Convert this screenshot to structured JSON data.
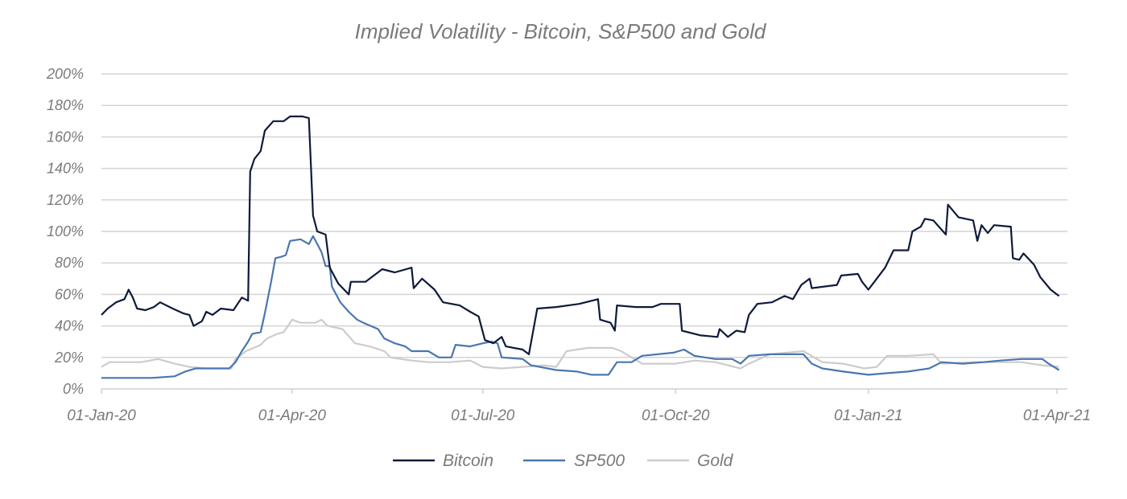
{
  "chart_data": {
    "type": "line",
    "title": "Implied Volatility - Bitcoin, S&P500 and Gold",
    "xlabel": "",
    "ylabel": "",
    "ylim": [
      0,
      200
    ],
    "xlim": [
      "2020-01-01",
      "2021-04-02"
    ],
    "grid": true,
    "legend_placement": "bottom",
    "y_ticks": [
      "0%",
      "20%",
      "40%",
      "60%",
      "80%",
      "100%",
      "120%",
      "140%",
      "160%",
      "180%",
      "200%"
    ],
    "x_ticks": [
      {
        "date": "2020-01-01",
        "label": "01-Jan-20"
      },
      {
        "date": "2020-04-01",
        "label": "01-Apr-20"
      },
      {
        "date": "2020-07-01",
        "label": "01-Jul-20"
      },
      {
        "date": "2020-10-01",
        "label": "01-Oct-20"
      },
      {
        "date": "2021-01-01",
        "label": "01-Jan-21"
      },
      {
        "date": "2021-04-01",
        "label": "01-Apr-21"
      }
    ],
    "series": [
      {
        "name": "Bitcoin",
        "color": "#0e1a3b",
        "points": [
          [
            "2020-01-01",
            47
          ],
          [
            "2020-01-04",
            51
          ],
          [
            "2020-01-08",
            55
          ],
          [
            "2020-01-12",
            57
          ],
          [
            "2020-01-14",
            63
          ],
          [
            "2020-01-16",
            58
          ],
          [
            "2020-01-18",
            51
          ],
          [
            "2020-01-22",
            50
          ],
          [
            "2020-01-26",
            52
          ],
          [
            "2020-01-29",
            55
          ],
          [
            "2020-02-04",
            51
          ],
          [
            "2020-02-09",
            48
          ],
          [
            "2020-02-12",
            47
          ],
          [
            "2020-02-14",
            40
          ],
          [
            "2020-02-18",
            43
          ],
          [
            "2020-02-20",
            49
          ],
          [
            "2020-02-23",
            47
          ],
          [
            "2020-02-27",
            51
          ],
          [
            "2020-03-04",
            50
          ],
          [
            "2020-03-08",
            58
          ],
          [
            "2020-03-11",
            56
          ],
          [
            "2020-03-12",
            138
          ],
          [
            "2020-03-14",
            146
          ],
          [
            "2020-03-17",
            151
          ],
          [
            "2020-03-19",
            164
          ],
          [
            "2020-03-23",
            170
          ],
          [
            "2020-03-28",
            170
          ],
          [
            "2020-03-31",
            173
          ],
          [
            "2020-04-06",
            173
          ],
          [
            "2020-04-09",
            172
          ],
          [
            "2020-04-11",
            110
          ],
          [
            "2020-04-13",
            100
          ],
          [
            "2020-04-17",
            98
          ],
          [
            "2020-04-19",
            77
          ],
          [
            "2020-04-23",
            67
          ],
          [
            "2020-04-28",
            60
          ],
          [
            "2020-04-29",
            68
          ],
          [
            "2020-05-06",
            68
          ],
          [
            "2020-05-14",
            76
          ],
          [
            "2020-05-20",
            74
          ],
          [
            "2020-05-28",
            77
          ],
          [
            "2020-05-29",
            64
          ],
          [
            "2020-06-02",
            70
          ],
          [
            "2020-06-08",
            63
          ],
          [
            "2020-06-12",
            55
          ],
          [
            "2020-06-20",
            53
          ],
          [
            "2020-06-25",
            49
          ],
          [
            "2020-06-29",
            46
          ],
          [
            "2020-07-02",
            31
          ],
          [
            "2020-07-06",
            29
          ],
          [
            "2020-07-10",
            33
          ],
          [
            "2020-07-12",
            27
          ],
          [
            "2020-07-20",
            25
          ],
          [
            "2020-07-23",
            22
          ],
          [
            "2020-07-27",
            51
          ],
          [
            "2020-08-05",
            52
          ],
          [
            "2020-08-16",
            54
          ],
          [
            "2020-08-25",
            57
          ],
          [
            "2020-08-26",
            44
          ],
          [
            "2020-08-31",
            42
          ],
          [
            "2020-09-02",
            37
          ],
          [
            "2020-09-03",
            53
          ],
          [
            "2020-09-12",
            52
          ],
          [
            "2020-09-20",
            52
          ],
          [
            "2020-09-24",
            54
          ],
          [
            "2020-10-03",
            54
          ],
          [
            "2020-10-04",
            37
          ],
          [
            "2020-10-13",
            34
          ],
          [
            "2020-10-21",
            33
          ],
          [
            "2020-10-22",
            38
          ],
          [
            "2020-10-26",
            33
          ],
          [
            "2020-10-30",
            37
          ],
          [
            "2020-11-03",
            36
          ],
          [
            "2020-11-05",
            47
          ],
          [
            "2020-11-09",
            54
          ],
          [
            "2020-11-16",
            55
          ],
          [
            "2020-11-22",
            59
          ],
          [
            "2020-11-26",
            57
          ],
          [
            "2020-11-30",
            66
          ],
          [
            "2020-12-04",
            70
          ],
          [
            "2020-12-05",
            64
          ],
          [
            "2020-12-17",
            66
          ],
          [
            "2020-12-19",
            72
          ],
          [
            "2020-12-27",
            73
          ],
          [
            "2020-12-29",
            68
          ],
          [
            "2021-01-01",
            63
          ],
          [
            "2021-01-05",
            70
          ],
          [
            "2021-01-09",
            77
          ],
          [
            "2021-01-13",
            88
          ],
          [
            "2021-01-20",
            88
          ],
          [
            "2021-01-22",
            100
          ],
          [
            "2021-01-26",
            103
          ],
          [
            "2021-01-28",
            108
          ],
          [
            "2021-02-01",
            107
          ],
          [
            "2021-02-07",
            98
          ],
          [
            "2021-02-08",
            117
          ],
          [
            "2021-02-13",
            109
          ],
          [
            "2021-02-20",
            107
          ],
          [
            "2021-02-22",
            94
          ],
          [
            "2021-02-24",
            104
          ],
          [
            "2021-02-27",
            99
          ],
          [
            "2021-03-02",
            104
          ],
          [
            "2021-03-10",
            103
          ],
          [
            "2021-03-11",
            83
          ],
          [
            "2021-03-14",
            82
          ],
          [
            "2021-03-16",
            86
          ],
          [
            "2021-03-21",
            79
          ],
          [
            "2021-03-24",
            71
          ],
          [
            "2021-03-29",
            63
          ],
          [
            "2021-04-02",
            59
          ]
        ]
      },
      {
        "name": "SP500",
        "color": "#4a76b0",
        "points": [
          [
            "2020-01-01",
            7
          ],
          [
            "2020-01-15",
            7
          ],
          [
            "2020-01-25",
            7
          ],
          [
            "2020-02-05",
            8
          ],
          [
            "2020-02-10",
            11
          ],
          [
            "2020-02-15",
            13
          ],
          [
            "2020-02-25",
            13
          ],
          [
            "2020-03-02",
            13
          ],
          [
            "2020-03-05",
            17
          ],
          [
            "2020-03-08",
            24
          ],
          [
            "2020-03-11",
            30
          ],
          [
            "2020-03-13",
            35
          ],
          [
            "2020-03-17",
            36
          ],
          [
            "2020-03-19",
            48
          ],
          [
            "2020-03-22",
            68
          ],
          [
            "2020-03-24",
            83
          ],
          [
            "2020-03-27",
            84
          ],
          [
            "2020-03-29",
            85
          ],
          [
            "2020-03-31",
            94
          ],
          [
            "2020-04-05",
            95
          ],
          [
            "2020-04-09",
            92
          ],
          [
            "2020-04-11",
            97
          ],
          [
            "2020-04-15",
            87
          ],
          [
            "2020-04-17",
            78
          ],
          [
            "2020-04-19",
            78
          ],
          [
            "2020-04-20",
            65
          ],
          [
            "2020-04-24",
            55
          ],
          [
            "2020-04-28",
            49
          ],
          [
            "2020-05-02",
            44
          ],
          [
            "2020-05-05",
            42
          ],
          [
            "2020-05-12",
            38
          ],
          [
            "2020-05-15",
            32
          ],
          [
            "2020-05-20",
            29
          ],
          [
            "2020-05-25",
            27
          ],
          [
            "2020-05-28",
            24
          ],
          [
            "2020-06-05",
            24
          ],
          [
            "2020-06-10",
            20
          ],
          [
            "2020-06-16",
            20
          ],
          [
            "2020-06-18",
            28
          ],
          [
            "2020-06-25",
            27
          ],
          [
            "2020-07-01",
            29
          ],
          [
            "2020-07-05",
            30
          ],
          [
            "2020-07-08",
            29
          ],
          [
            "2020-07-10",
            20
          ],
          [
            "2020-07-20",
            19
          ],
          [
            "2020-07-24",
            15
          ],
          [
            "2020-08-05",
            12
          ],
          [
            "2020-08-15",
            11
          ],
          [
            "2020-08-22",
            9
          ],
          [
            "2020-08-30",
            9
          ],
          [
            "2020-09-03",
            17
          ],
          [
            "2020-09-10",
            17
          ],
          [
            "2020-09-15",
            21
          ],
          [
            "2020-09-30",
            23
          ],
          [
            "2020-10-05",
            25
          ],
          [
            "2020-10-10",
            21
          ],
          [
            "2020-10-20",
            19
          ],
          [
            "2020-10-28",
            19
          ],
          [
            "2020-11-01",
            16
          ],
          [
            "2020-11-05",
            21
          ],
          [
            "2020-11-15",
            22
          ],
          [
            "2020-11-22",
            22
          ],
          [
            "2020-12-01",
            22
          ],
          [
            "2020-12-05",
            16
          ],
          [
            "2020-12-10",
            13
          ],
          [
            "2020-12-20",
            11
          ],
          [
            "2021-01-01",
            9
          ],
          [
            "2021-01-10",
            10
          ],
          [
            "2021-01-20",
            11
          ],
          [
            "2021-01-30",
            13
          ],
          [
            "2021-02-05",
            17
          ],
          [
            "2021-02-15",
            16
          ],
          [
            "2021-02-25",
            17
          ],
          [
            "2021-03-05",
            18
          ],
          [
            "2021-03-15",
            19
          ],
          [
            "2021-03-25",
            19
          ],
          [
            "2021-03-28",
            16
          ],
          [
            "2021-04-02",
            12
          ]
        ]
      },
      {
        "name": "Gold",
        "color": "#cccccc",
        "points": [
          [
            "2020-01-01",
            14
          ],
          [
            "2020-01-05",
            17
          ],
          [
            "2020-01-20",
            17
          ],
          [
            "2020-01-28",
            19
          ],
          [
            "2020-02-05",
            16
          ],
          [
            "2020-02-12",
            14
          ],
          [
            "2020-02-20",
            13
          ],
          [
            "2020-03-03",
            13
          ],
          [
            "2020-03-05",
            19
          ],
          [
            "2020-03-10",
            24
          ],
          [
            "2020-03-17",
            28
          ],
          [
            "2020-03-20",
            32
          ],
          [
            "2020-03-25",
            35
          ],
          [
            "2020-03-28",
            36
          ],
          [
            "2020-04-01",
            44
          ],
          [
            "2020-04-05",
            42
          ],
          [
            "2020-04-12",
            42
          ],
          [
            "2020-04-15",
            44
          ],
          [
            "2020-04-18",
            40
          ],
          [
            "2020-04-25",
            38
          ],
          [
            "2020-05-01",
            29
          ],
          [
            "2020-05-08",
            27
          ],
          [
            "2020-05-15",
            24
          ],
          [
            "2020-05-18",
            20
          ],
          [
            "2020-05-28",
            18
          ],
          [
            "2020-06-05",
            17
          ],
          [
            "2020-06-15",
            17
          ],
          [
            "2020-06-25",
            18
          ],
          [
            "2020-07-01",
            14
          ],
          [
            "2020-07-10",
            13
          ],
          [
            "2020-07-20",
            14
          ],
          [
            "2020-07-30",
            15
          ],
          [
            "2020-08-05",
            14
          ],
          [
            "2020-08-10",
            24
          ],
          [
            "2020-08-20",
            26
          ],
          [
            "2020-09-01",
            26
          ],
          [
            "2020-09-05",
            24
          ],
          [
            "2020-09-15",
            16
          ],
          [
            "2020-10-01",
            16
          ],
          [
            "2020-10-10",
            18
          ],
          [
            "2020-10-20",
            17
          ],
          [
            "2020-11-01",
            13
          ],
          [
            "2020-11-05",
            16
          ],
          [
            "2020-11-15",
            22
          ],
          [
            "2020-12-01",
            24
          ],
          [
            "2020-12-10",
            17
          ],
          [
            "2020-12-20",
            16
          ],
          [
            "2020-12-30",
            13
          ],
          [
            "2021-01-05",
            14
          ],
          [
            "2021-01-10",
            21
          ],
          [
            "2021-01-20",
            21
          ],
          [
            "2021-02-01",
            22
          ],
          [
            "2021-02-05",
            16
          ],
          [
            "2021-02-20",
            17
          ],
          [
            "2021-03-05",
            17
          ],
          [
            "2021-03-15",
            17
          ],
          [
            "2021-03-25",
            15
          ],
          [
            "2021-04-02",
            14
          ]
        ]
      }
    ]
  }
}
